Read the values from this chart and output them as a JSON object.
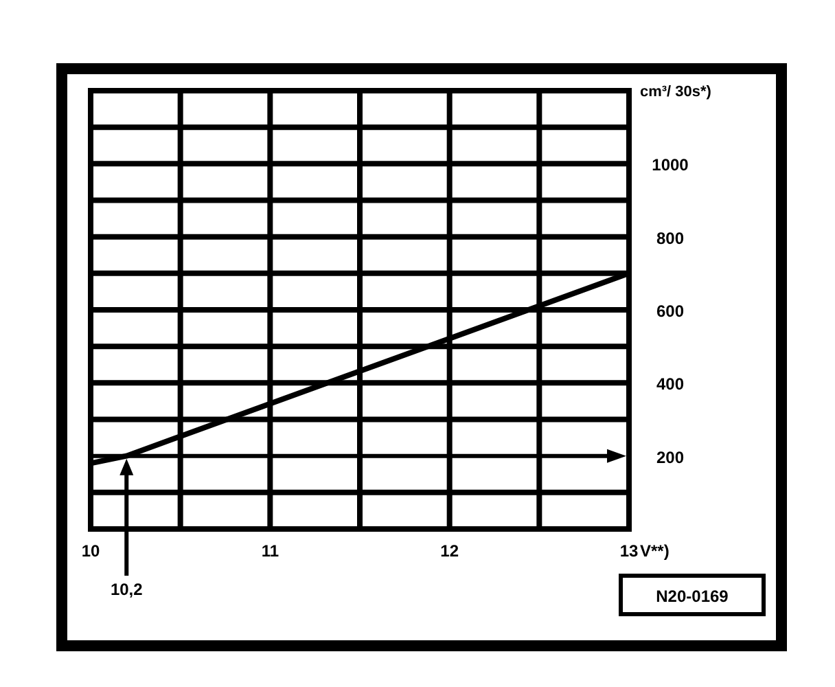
{
  "chart_data": {
    "type": "line",
    "xlabel": "V**)",
    "ylabel": "cm³/ 30s*)",
    "x": [
      10,
      10.2,
      13
    ],
    "series": [
      {
        "color": "#000000",
        "values": [
          180,
          200,
          700
        ]
      }
    ],
    "xlim": [
      10,
      13
    ],
    "ylim": [
      0,
      1200
    ],
    "xticks": [
      10,
      {
        "value": 10.5,
        "label": null
      },
      11,
      {
        "value": 11.5,
        "label": null
      },
      12,
      {
        "value": 12.5,
        "label": null
      },
      13
    ],
    "yticks": [
      {
        "value": 100,
        "label": null
      },
      200,
      {
        "value": 300,
        "label": null
      },
      400,
      {
        "value": 500,
        "label": null
      },
      600,
      {
        "value": 700,
        "label": null
      },
      800,
      {
        "value": 900,
        "label": null
      },
      1000,
      {
        "value": 1100,
        "label": null
      }
    ],
    "grid": true,
    "marker": "none",
    "line_style": "solid",
    "ref_lines": [
      {
        "axis": "y",
        "value": 200
      }
    ],
    "annotations": [
      {
        "text": "10,2",
        "x": 10.2
      },
      "N20-0169"
    ]
  }
}
